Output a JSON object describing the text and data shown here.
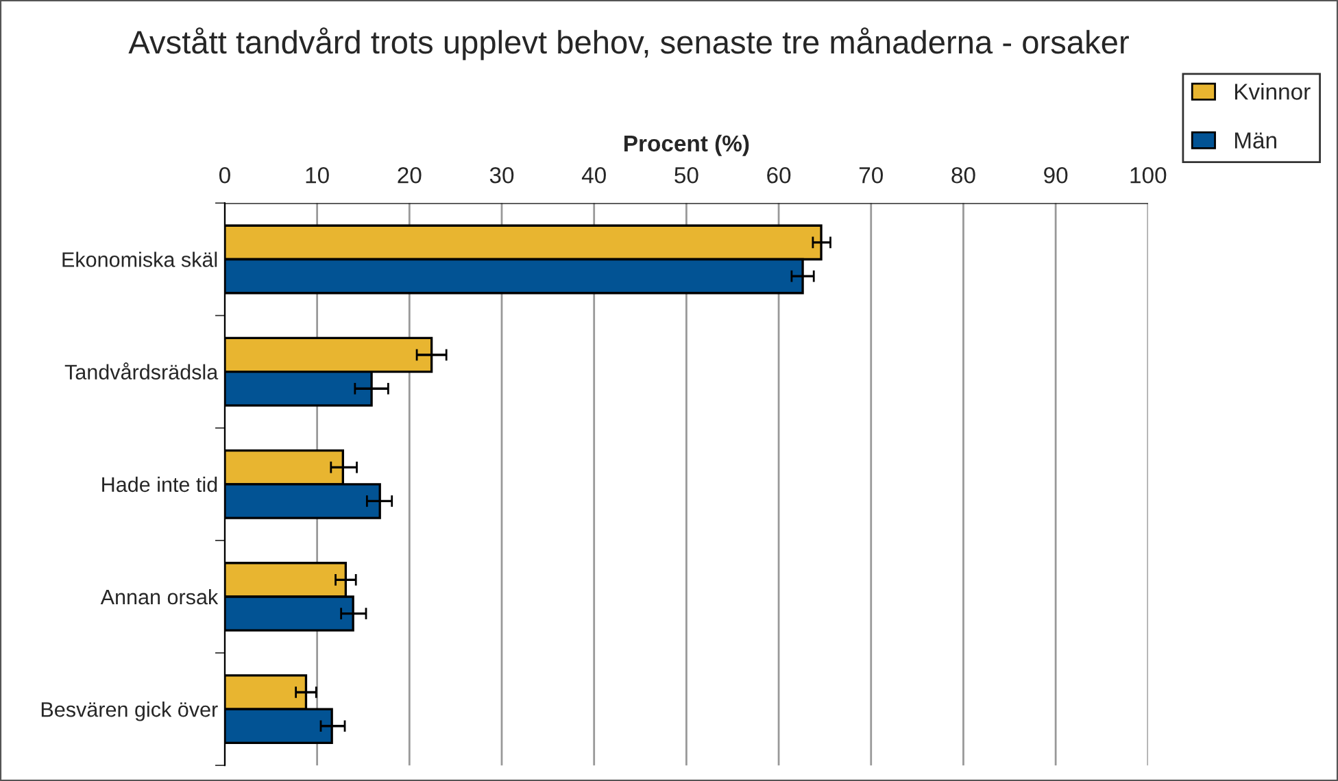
{
  "chart_data": {
    "type": "bar",
    "orientation": "horizontal",
    "title": "Avstått tandvård trots upplevt behov, senaste tre månaderna - orsaker",
    "xlabel": "Procent (%)",
    "categories": [
      "Ekonomiska skäl",
      "Tandvårdsrädsla",
      "Hade inte tid",
      "Annan orsak",
      "Besvären gick över"
    ],
    "series": [
      {
        "name": "Kvinnor",
        "color": "#e8b530",
        "values": [
          64.6,
          22.4,
          12.8,
          13.1,
          8.8
        ],
        "errors": [
          [
            63.7,
            65.6
          ],
          [
            20.8,
            24.0
          ],
          [
            11.5,
            14.3
          ],
          [
            12.0,
            14.2
          ],
          [
            7.7,
            9.9
          ]
        ]
      },
      {
        "name": "Män",
        "color": "#025394",
        "values": [
          62.6,
          15.9,
          16.8,
          13.9,
          11.6
        ],
        "errors": [
          [
            61.4,
            63.8
          ],
          [
            14.1,
            17.7
          ],
          [
            15.4,
            18.1
          ],
          [
            12.6,
            15.3
          ],
          [
            10.4,
            13.0
          ]
        ]
      }
    ],
    "xlim": [
      0,
      100
    ],
    "xticks": [
      0,
      10,
      20,
      30,
      40,
      50,
      60,
      70,
      80,
      90,
      100
    ],
    "grid": "x",
    "legend": "top right"
  }
}
